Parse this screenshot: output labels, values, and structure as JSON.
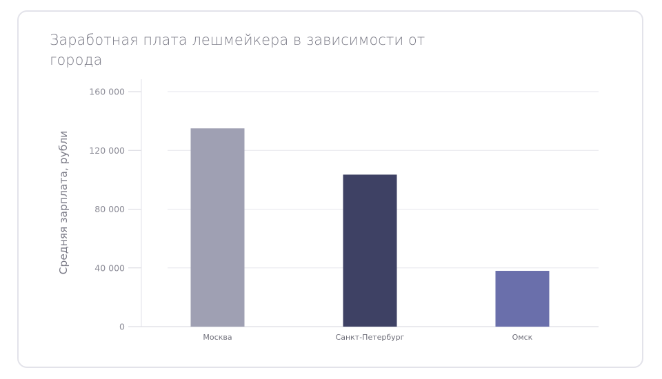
{
  "chart_data": {
    "type": "bar",
    "title": "Заработная плата лешмейкера в зависимости от города",
    "xlabel": "",
    "ylabel": "Средняя зарплата, рубли",
    "categories": [
      "Москва",
      "Санкт-Петербург",
      "Омск"
    ],
    "values": [
      135000,
      103500,
      38000
    ],
    "ylim": [
      0,
      160000
    ],
    "yticks": [
      0,
      40000,
      80000,
      120000,
      160000
    ],
    "ytick_labels": [
      "0",
      "40 000",
      "80 000",
      "120 000",
      "160 000"
    ],
    "colors": [
      "#9fa0b3",
      "#3e4164",
      "#6a6fab"
    ],
    "grid": true,
    "legend": "none"
  }
}
